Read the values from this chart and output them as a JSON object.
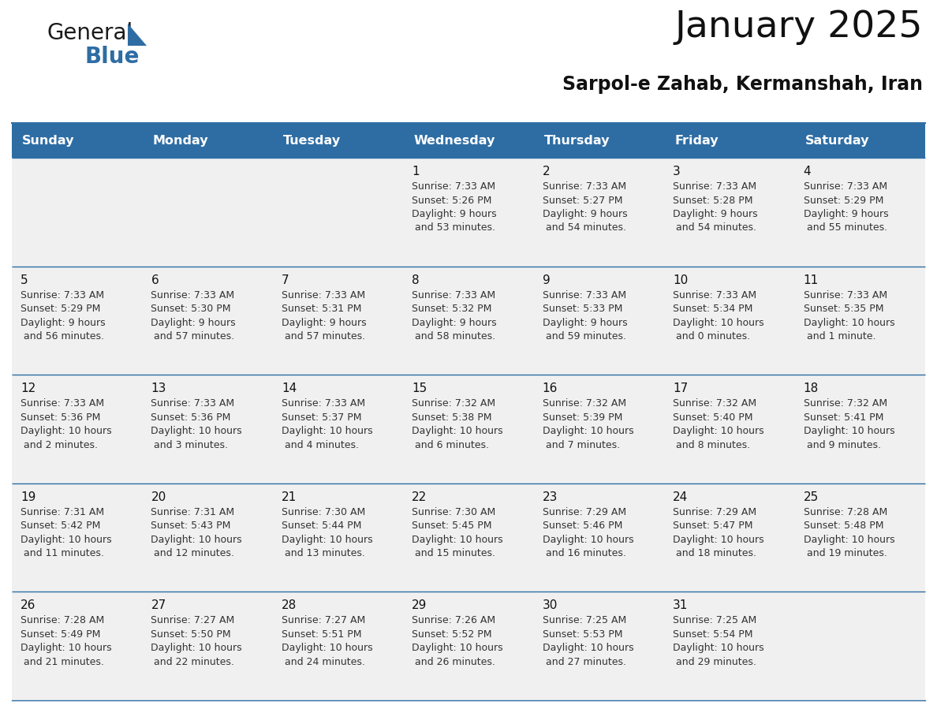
{
  "title": "January 2025",
  "subtitle": "Sarpol-e Zahab, Kermanshah, Iran",
  "header_bg": "#2E6DA4",
  "header_text_color": "#FFFFFF",
  "cell_bg": "#F0F0F0",
  "border_color": "#2E6DA4",
  "text_color": "#333333",
  "day_num_color": "#111111",
  "logo_blue_color": "#2E6DA4",
  "days_of_week": [
    "Sunday",
    "Monday",
    "Tuesday",
    "Wednesday",
    "Thursday",
    "Friday",
    "Saturday"
  ],
  "calendar_data": [
    [
      {
        "day": null,
        "sunrise": null,
        "sunset": null,
        "daylight": null
      },
      {
        "day": null,
        "sunrise": null,
        "sunset": null,
        "daylight": null
      },
      {
        "day": null,
        "sunrise": null,
        "sunset": null,
        "daylight": null
      },
      {
        "day": 1,
        "sunrise": "7:33 AM",
        "sunset": "5:26 PM",
        "daylight": "9 hours and 53 minutes."
      },
      {
        "day": 2,
        "sunrise": "7:33 AM",
        "sunset": "5:27 PM",
        "daylight": "9 hours and 54 minutes."
      },
      {
        "day": 3,
        "sunrise": "7:33 AM",
        "sunset": "5:28 PM",
        "daylight": "9 hours and 54 minutes."
      },
      {
        "day": 4,
        "sunrise": "7:33 AM",
        "sunset": "5:29 PM",
        "daylight": "9 hours and 55 minutes."
      }
    ],
    [
      {
        "day": 5,
        "sunrise": "7:33 AM",
        "sunset": "5:29 PM",
        "daylight": "9 hours and 56 minutes."
      },
      {
        "day": 6,
        "sunrise": "7:33 AM",
        "sunset": "5:30 PM",
        "daylight": "9 hours and 57 minutes."
      },
      {
        "day": 7,
        "sunrise": "7:33 AM",
        "sunset": "5:31 PM",
        "daylight": "9 hours and 57 minutes."
      },
      {
        "day": 8,
        "sunrise": "7:33 AM",
        "sunset": "5:32 PM",
        "daylight": "9 hours and 58 minutes."
      },
      {
        "day": 9,
        "sunrise": "7:33 AM",
        "sunset": "5:33 PM",
        "daylight": "9 hours and 59 minutes."
      },
      {
        "day": 10,
        "sunrise": "7:33 AM",
        "sunset": "5:34 PM",
        "daylight": "10 hours and 0 minutes."
      },
      {
        "day": 11,
        "sunrise": "7:33 AM",
        "sunset": "5:35 PM",
        "daylight": "10 hours and 1 minute."
      }
    ],
    [
      {
        "day": 12,
        "sunrise": "7:33 AM",
        "sunset": "5:36 PM",
        "daylight": "10 hours and 2 minutes."
      },
      {
        "day": 13,
        "sunrise": "7:33 AM",
        "sunset": "5:36 PM",
        "daylight": "10 hours and 3 minutes."
      },
      {
        "day": 14,
        "sunrise": "7:33 AM",
        "sunset": "5:37 PM",
        "daylight": "10 hours and 4 minutes."
      },
      {
        "day": 15,
        "sunrise": "7:32 AM",
        "sunset": "5:38 PM",
        "daylight": "10 hours and 6 minutes."
      },
      {
        "day": 16,
        "sunrise": "7:32 AM",
        "sunset": "5:39 PM",
        "daylight": "10 hours and 7 minutes."
      },
      {
        "day": 17,
        "sunrise": "7:32 AM",
        "sunset": "5:40 PM",
        "daylight": "10 hours and 8 minutes."
      },
      {
        "day": 18,
        "sunrise": "7:32 AM",
        "sunset": "5:41 PM",
        "daylight": "10 hours and 9 minutes."
      }
    ],
    [
      {
        "day": 19,
        "sunrise": "7:31 AM",
        "sunset": "5:42 PM",
        "daylight": "10 hours and 11 minutes."
      },
      {
        "day": 20,
        "sunrise": "7:31 AM",
        "sunset": "5:43 PM",
        "daylight": "10 hours and 12 minutes."
      },
      {
        "day": 21,
        "sunrise": "7:30 AM",
        "sunset": "5:44 PM",
        "daylight": "10 hours and 13 minutes."
      },
      {
        "day": 22,
        "sunrise": "7:30 AM",
        "sunset": "5:45 PM",
        "daylight": "10 hours and 15 minutes."
      },
      {
        "day": 23,
        "sunrise": "7:29 AM",
        "sunset": "5:46 PM",
        "daylight": "10 hours and 16 minutes."
      },
      {
        "day": 24,
        "sunrise": "7:29 AM",
        "sunset": "5:47 PM",
        "daylight": "10 hours and 18 minutes."
      },
      {
        "day": 25,
        "sunrise": "7:28 AM",
        "sunset": "5:48 PM",
        "daylight": "10 hours and 19 minutes."
      }
    ],
    [
      {
        "day": 26,
        "sunrise": "7:28 AM",
        "sunset": "5:49 PM",
        "daylight": "10 hours and 21 minutes."
      },
      {
        "day": 27,
        "sunrise": "7:27 AM",
        "sunset": "5:50 PM",
        "daylight": "10 hours and 22 minutes."
      },
      {
        "day": 28,
        "sunrise": "7:27 AM",
        "sunset": "5:51 PM",
        "daylight": "10 hours and 24 minutes."
      },
      {
        "day": 29,
        "sunrise": "7:26 AM",
        "sunset": "5:52 PM",
        "daylight": "10 hours and 26 minutes."
      },
      {
        "day": 30,
        "sunrise": "7:25 AM",
        "sunset": "5:53 PM",
        "daylight": "10 hours and 27 minutes."
      },
      {
        "day": 31,
        "sunrise": "7:25 AM",
        "sunset": "5:54 PM",
        "daylight": "10 hours and 29 minutes."
      },
      {
        "day": null,
        "sunrise": null,
        "sunset": null,
        "daylight": null
      }
    ]
  ]
}
